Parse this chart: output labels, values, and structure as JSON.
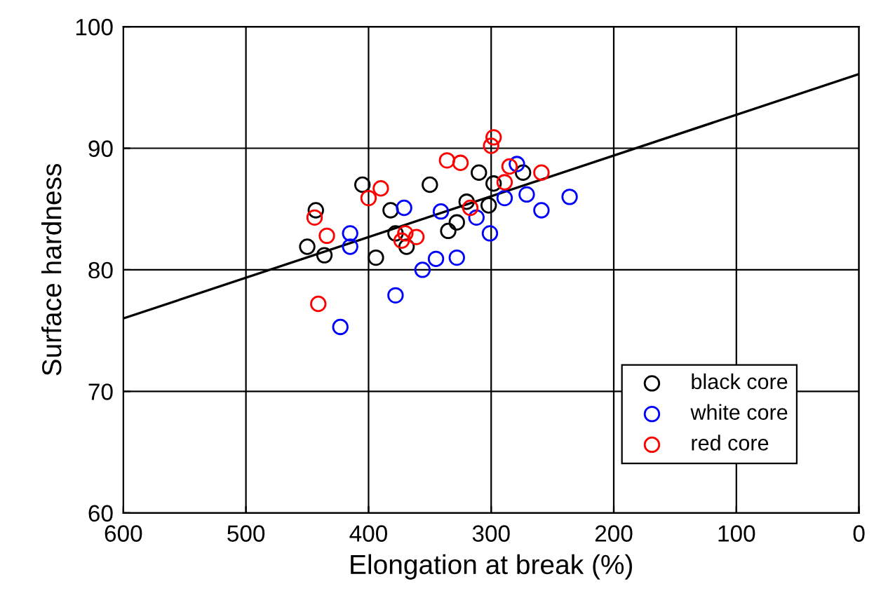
{
  "chart_data": {
    "type": "scatter",
    "xlabel": "Elongation at break (%)",
    "ylabel": "Surface hardness",
    "xlim": [
      600,
      0
    ],
    "ylim": [
      60,
      100
    ],
    "xticks": [
      600,
      500,
      400,
      300,
      200,
      100,
      0
    ],
    "yticks": [
      60,
      70,
      80,
      90,
      100
    ],
    "grid": true,
    "legend": "bottom right",
    "marker": "circle",
    "series": [
      {
        "name": "black core",
        "color": "#000000",
        "x": [
          443,
          450,
          436,
          405,
          394,
          382,
          378,
          369,
          350,
          335,
          328,
          320,
          310,
          298,
          302,
          274
        ],
        "values": [
          84.9,
          81.9,
          81.2,
          87.0,
          81.0,
          84.9,
          83.0,
          81.9,
          87.0,
          83.2,
          83.9,
          85.6,
          88.0,
          87.1,
          85.3,
          88.0
        ]
      },
      {
        "name": "white core",
        "color": "#0000ff",
        "x": [
          415,
          415,
          371,
          341,
          312,
          301,
          289,
          279,
          271,
          259,
          236,
          328,
          345,
          356,
          378,
          423
        ],
        "values": [
          83.0,
          81.9,
          85.1,
          84.8,
          84.3,
          83.0,
          85.9,
          88.7,
          86.2,
          84.9,
          86.0,
          81.0,
          80.9,
          80.0,
          77.9,
          75.3
        ]
      },
      {
        "name": "red core",
        "color": "#ff0000",
        "x": [
          444,
          434,
          441,
          400,
          390,
          373,
          370,
          361,
          336,
          325,
          317,
          300,
          298,
          289,
          285,
          259
        ],
        "values": [
          84.3,
          82.8,
          77.2,
          85.9,
          86.7,
          82.4,
          83.0,
          82.7,
          89.0,
          88.8,
          85.1,
          90.2,
          90.9,
          87.2,
          88.5,
          88.0
        ]
      },
      {
        "type": "line",
        "color": "#000000",
        "x": [
          600,
          0
        ],
        "values": [
          76.0,
          96.1
        ],
        "marker": "none"
      }
    ]
  }
}
